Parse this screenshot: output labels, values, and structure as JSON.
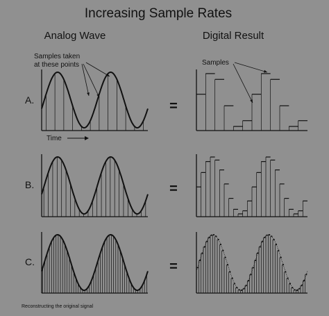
{
  "title": "Increasing Sample Rates",
  "columns": {
    "analog": "Analog Wave",
    "digital": "Digital Result"
  },
  "annotations": {
    "samples_taken_line1": "Samples taken",
    "samples_taken_line2": "at these points",
    "samples": "Samples",
    "time": "Time"
  },
  "rows": [
    {
      "label": "A.",
      "equals": "=",
      "samples_per_two_cycles": 12
    },
    {
      "label": "B.",
      "equals": "=",
      "samples_per_two_cycles": 24
    },
    {
      "label": "C.",
      "equals": "=",
      "samples_per_two_cycles": 48
    }
  ],
  "caption": "Reconstructing the original signal",
  "colors": {
    "background": "#909090",
    "ink": "#111111"
  }
}
